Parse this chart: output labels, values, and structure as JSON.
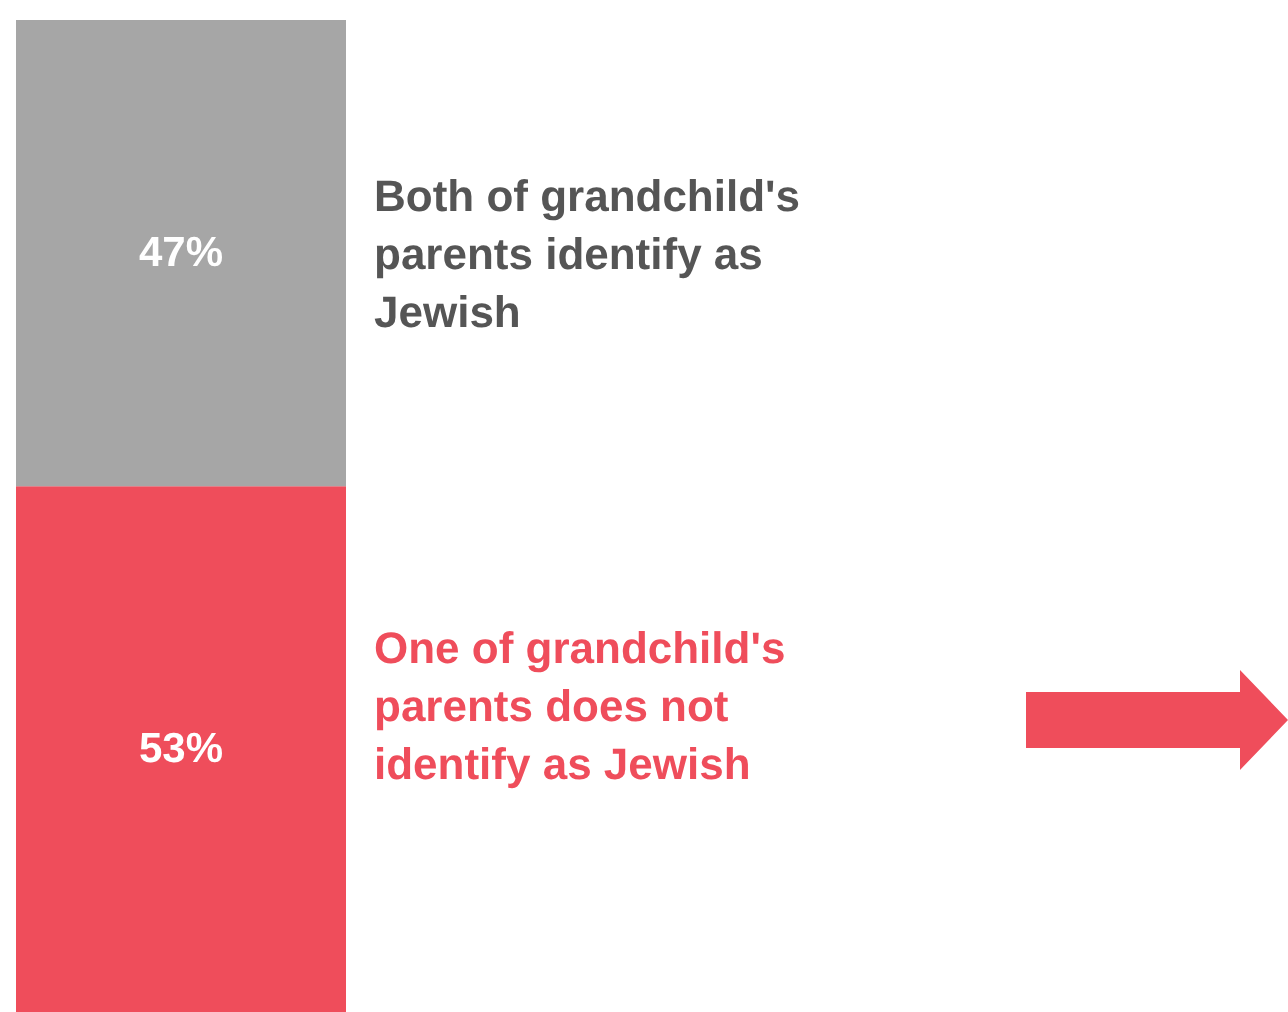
{
  "chart_data": {
    "type": "bar",
    "stacked": true,
    "categories": [
      null
    ],
    "series": [
      {
        "name": "One of grandchild's parents does not identify as Jewish",
        "color": "#ef4d5b",
        "values": [
          53
        ],
        "value_labels": [
          "53%"
        ]
      },
      {
        "name": "Both of grandchild's parents identify as Jewish",
        "color": "#a6a6a6",
        "values": [
          47
        ],
        "value_labels": [
          "47%"
        ]
      }
    ]
  }
}
